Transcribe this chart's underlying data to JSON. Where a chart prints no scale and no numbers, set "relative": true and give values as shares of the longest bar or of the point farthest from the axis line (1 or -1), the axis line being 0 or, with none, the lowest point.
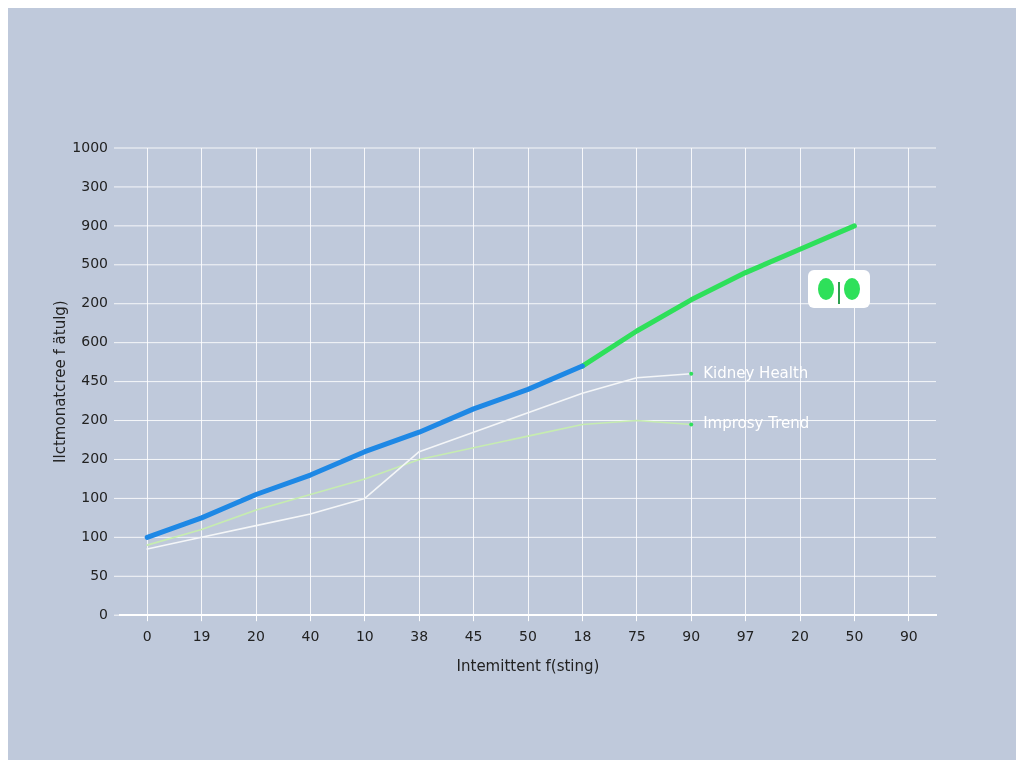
{
  "chart_data": {
    "type": "line",
    "xlabel": "Intemittent f(sting)",
    "ylabel": "Ilctmonatcree f ätulg)",
    "categories": [
      "0",
      "19",
      "20",
      "40",
      "10",
      "38",
      "45",
      "50",
      "18",
      "75",
      "90",
      "97",
      "20",
      "50",
      "90"
    ],
    "relative": true,
    "annotations": [
      "1000",
      "300",
      "900",
      "500",
      "200",
      "600",
      "450",
      "200",
      "200",
      "100",
      "100",
      "50",
      "0"
    ],
    "grid": true,
    "legend": false,
    "marker": "none",
    "series": [
      {
        "color": "#1e88e5",
        "values": [
          0.2,
          0.25,
          0.31,
          0.36,
          0.42,
          0.47,
          0.53,
          0.58,
          0.64,
          null,
          null,
          null,
          null,
          null,
          null
        ]
      },
      {
        "color": "#2ee05a",
        "values": [
          null,
          null,
          null,
          null,
          null,
          null,
          null,
          null,
          0.64,
          0.73,
          0.81,
          0.88,
          0.94,
          1,
          null
        ]
      },
      {
        "name": "Kidney Health",
        "color": "#f4f6f8",
        "values": [
          0.17,
          0.2,
          0.23,
          0.26,
          0.3,
          0.42,
          0.47,
          0.52,
          0.57,
          0.61,
          0.62,
          null,
          null,
          null,
          null
        ]
      },
      {
        "name": "Improsy Trend",
        "color": "#c6ecb0",
        "values": [
          0.18,
          0.22,
          0.27,
          0.31,
          0.35,
          0.4,
          0.43,
          0.46,
          0.49,
          0.5,
          0.49,
          null,
          null,
          null,
          null
        ]
      }
    ]
  }
}
